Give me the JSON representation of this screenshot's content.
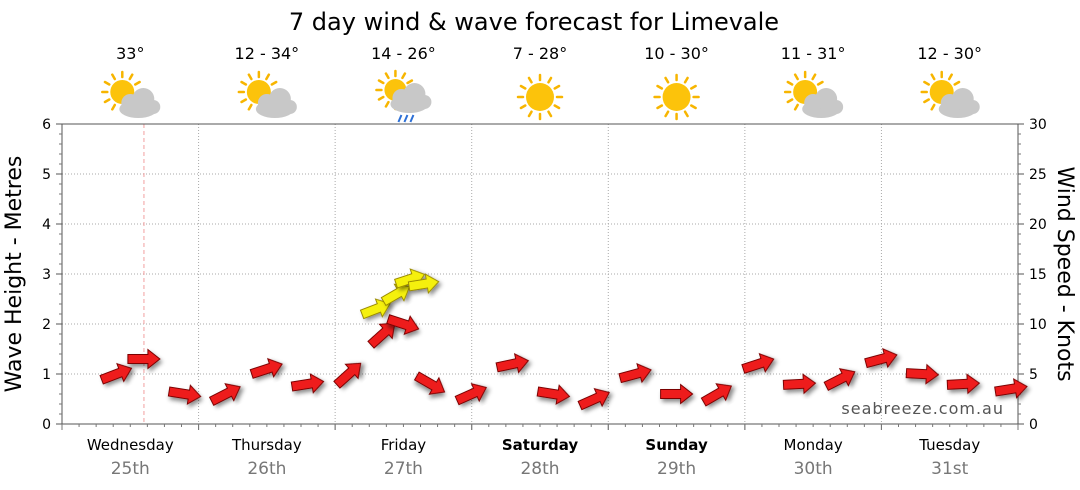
{
  "chart_data": {
    "type": "line",
    "title": "7 day wind & wave forecast for Limevale",
    "ylabel_left": "Wave Height - Metres",
    "ylabel_right": "Wind Speed - Knots",
    "ylim_left": [
      0,
      6
    ],
    "ylim_right": [
      0,
      30
    ],
    "yticks_left": [
      "0",
      "1",
      "2",
      "3",
      "4",
      "5",
      "6"
    ],
    "yticks_right": [
      "0",
      "5",
      "10",
      "15",
      "20",
      "25",
      "30"
    ],
    "days": [
      {
        "name": "Wednesday",
        "date": "25th",
        "temp": "33°",
        "icon": "partly-cloudy-icon",
        "bold": false
      },
      {
        "name": "Thursday",
        "date": "26th",
        "temp": "12 - 34°",
        "icon": "partly-cloudy-icon",
        "bold": false
      },
      {
        "name": "Friday",
        "date": "27th",
        "temp": "14 - 26°",
        "icon": "cloud-rain-icon",
        "bold": false
      },
      {
        "name": "Saturday",
        "date": "28th",
        "temp": "7 - 28°",
        "icon": "sun-icon",
        "bold": true
      },
      {
        "name": "Sunday",
        "date": "29th",
        "temp": "10 - 30°",
        "icon": "sun-icon",
        "bold": true
      },
      {
        "name": "Monday",
        "date": "30th",
        "temp": "11 - 31°",
        "icon": "partly-cloudy-icon",
        "bold": false
      },
      {
        "name": "Tuesday",
        "date": "31st",
        "temp": "12 - 30°",
        "icon": "partly-cloudy-icon",
        "bold": false
      }
    ],
    "wind_series": {
      "name": "Wind Speed (knots)",
      "x_days": [
        0.4,
        0.6,
        0.9,
        1.2,
        1.5,
        1.8,
        2.1,
        2.35,
        2.5,
        2.7,
        3.0,
        3.3,
        3.6,
        3.9,
        4.2,
        4.5,
        4.8,
        5.1,
        5.4,
        5.7,
        6.0,
        6.3,
        6.6,
        6.95
      ],
      "values": [
        5,
        6.5,
        3,
        3,
        5.5,
        4,
        5,
        9,
        10,
        4,
        3,
        6,
        3,
        2.5,
        5,
        3,
        3,
        6,
        4,
        4.5,
        6.5,
        5,
        4,
        3.5
      ],
      "color": "#ee1c1c"
    },
    "gust_series": {
      "name": "Wind Gusts (knots)",
      "x_days": [
        2.3,
        2.45,
        2.55,
        2.65
      ],
      "values": [
        11.5,
        13,
        14.5,
        14
      ],
      "color": "#f5f00a"
    },
    "now_marker_day": 0.6,
    "watermark": "seabreeze.com.au"
  }
}
